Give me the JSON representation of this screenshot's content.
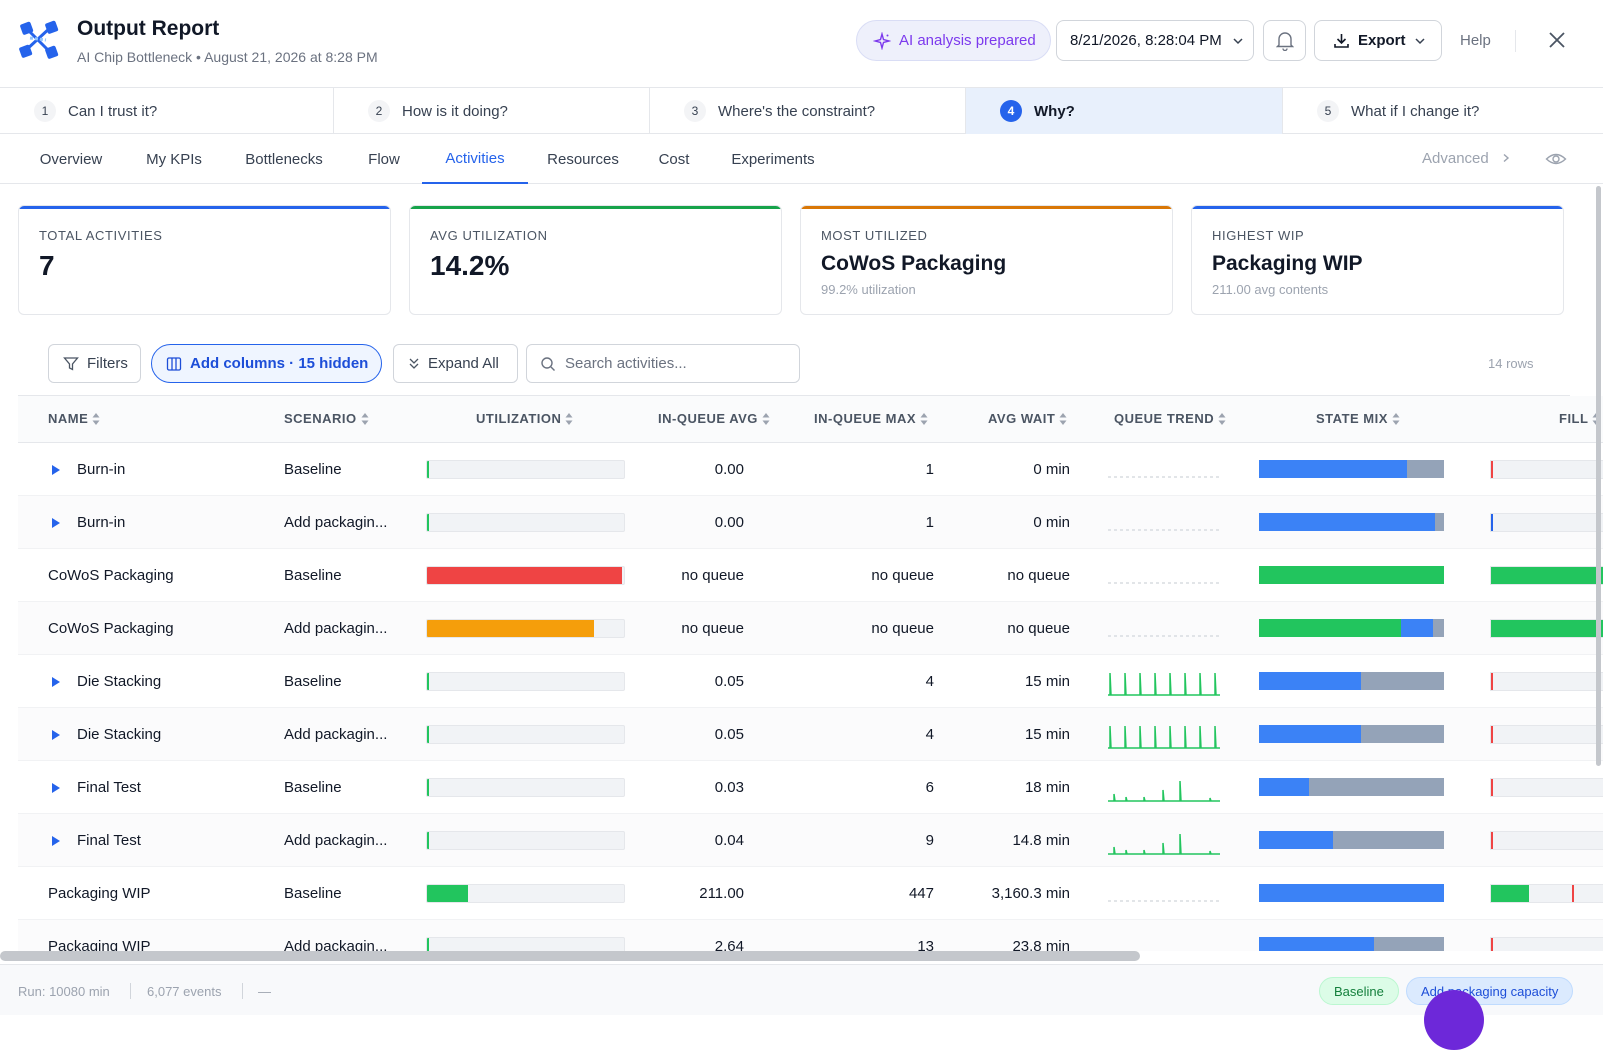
{
  "header": {
    "title": "Output Report",
    "subtitle": "AI Chip Bottleneck • August 21, 2026 at 8:28 PM",
    "ai_label": "AI analysis prepared",
    "date_value": "8/21/2026, 8:28:04 PM",
    "export_label": "Export",
    "help_label": "Help",
    "colors": {
      "accent": "#2563eb",
      "ai": "#7c3aed"
    }
  },
  "steps": [
    {
      "num": "1",
      "label": "Can I trust it?"
    },
    {
      "num": "2",
      "label": "How is it doing?"
    },
    {
      "num": "3",
      "label": "Where's the constraint?"
    },
    {
      "num": "4",
      "label": "Why?",
      "active": true
    },
    {
      "num": "5",
      "label": "What if I change it?"
    }
  ],
  "tabs": {
    "items": [
      "Overview",
      "My KPIs",
      "Bottlenecks",
      "Flow",
      "Activities",
      "Resources",
      "Cost",
      "Experiments"
    ],
    "active": "Activities",
    "advanced": "Advanced"
  },
  "kpis": [
    {
      "label": "TOTAL ACTIVITIES",
      "value": "7",
      "sub": "",
      "color": "#2563eb"
    },
    {
      "label": "AVG UTILIZATION",
      "value": "14.2%",
      "sub": "",
      "color": "#16a34a"
    },
    {
      "label": "MOST UTILIZED",
      "value": "CoWoS Packaging",
      "sub": "99.2% utilization",
      "color": "#d97706"
    },
    {
      "label": "HIGHEST WIP",
      "value": "Packaging WIP",
      "sub": "211.00 avg contents",
      "color": "#2563eb"
    }
  ],
  "toolbar": {
    "filters": "Filters",
    "add_columns": "Add columns · 15 hidden",
    "expand_all": "Expand All",
    "search_placeholder": "Search activities...",
    "rows": "14 rows"
  },
  "columns": [
    "NAME",
    "SCENARIO",
    "UTILIZATION",
    "IN-QUEUE AVG",
    "IN-QUEUE MAX",
    "AVG WAIT",
    "QUEUE TREND",
    "STATE MIX",
    "FILL"
  ],
  "rows": [
    {
      "name": "Burn-in",
      "expand": true,
      "scenario": "Baseline",
      "util": 0.005,
      "util_color": "#22c55e",
      "qavg": "0.00",
      "qmax": "1",
      "wait": "0 min",
      "trend": "flat",
      "state": [
        [
          "#3b82f6",
          0.8
        ],
        [
          "#94a3b8",
          0.2
        ]
      ],
      "fill": 0.01,
      "fill_color": "#ef4444",
      "fill_marker": null
    },
    {
      "name": "Burn-in",
      "expand": true,
      "scenario": "Add packagin...",
      "util": 0.005,
      "util_color": "#22c55e",
      "qavg": "0.00",
      "qmax": "1",
      "wait": "0 min",
      "trend": "flat",
      "state": [
        [
          "#3b82f6",
          0.95
        ],
        [
          "#94a3b8",
          0.05
        ]
      ],
      "fill": 0.01,
      "fill_color": "#2563eb",
      "fill_marker": null
    },
    {
      "name": "CoWoS Packaging",
      "expand": false,
      "scenario": "Baseline",
      "util": 0.992,
      "util_color": "#ef4444",
      "qavg": "no queue",
      "qmax": "no queue",
      "wait": "no queue",
      "trend": "flat",
      "state": [
        [
          "#22c55e",
          1.0
        ]
      ],
      "fill": 1.0,
      "fill_color": "#22c55e",
      "fill_marker": null
    },
    {
      "name": "CoWoS Packaging",
      "expand": false,
      "scenario": "Add packagin...",
      "util": 0.85,
      "util_color": "#f59e0b",
      "qavg": "no queue",
      "qmax": "no queue",
      "wait": "no queue",
      "trend": "flat",
      "state": [
        [
          "#22c55e",
          0.77
        ],
        [
          "#3b82f6",
          0.17
        ],
        [
          "#94a3b8",
          0.06
        ]
      ],
      "fill": 1.0,
      "fill_color": "#22c55e",
      "fill_marker": null
    },
    {
      "name": "Die Stacking",
      "expand": true,
      "scenario": "Baseline",
      "util": 0.005,
      "util_color": "#22c55e",
      "qavg": "0.05",
      "qmax": "4",
      "wait": "15 min",
      "trend": "spikes",
      "state": [
        [
          "#3b82f6",
          0.55
        ],
        [
          "#94a3b8",
          0.45
        ]
      ],
      "fill": 0.01,
      "fill_color": "#ef4444",
      "fill_marker": null
    },
    {
      "name": "Die Stacking",
      "expand": true,
      "scenario": "Add packagin...",
      "util": 0.005,
      "util_color": "#22c55e",
      "qavg": "0.05",
      "qmax": "4",
      "wait": "15 min",
      "trend": "spikes",
      "state": [
        [
          "#3b82f6",
          0.55
        ],
        [
          "#94a3b8",
          0.45
        ]
      ],
      "fill": 0.01,
      "fill_color": "#ef4444",
      "fill_marker": null
    },
    {
      "name": "Final Test",
      "expand": true,
      "scenario": "Baseline",
      "util": 0.002,
      "util_color": "#22c55e",
      "qavg": "0.03",
      "qmax": "6",
      "wait": "18 min",
      "trend": "sparse",
      "state": [
        [
          "#3b82f6",
          0.27
        ],
        [
          "#94a3b8",
          0.73
        ]
      ],
      "fill": 0.01,
      "fill_color": "#ef4444",
      "fill_marker": null
    },
    {
      "name": "Final Test",
      "expand": true,
      "scenario": "Add packagin...",
      "util": 0.005,
      "util_color": "#22c55e",
      "qavg": "0.04",
      "qmax": "9",
      "wait": "14.8 min",
      "trend": "sparse",
      "state": [
        [
          "#3b82f6",
          0.4
        ],
        [
          "#94a3b8",
          0.6
        ]
      ],
      "fill": 0.01,
      "fill_color": "#ef4444",
      "fill_marker": null
    },
    {
      "name": "Packaging WIP",
      "expand": false,
      "scenario": "Baseline",
      "util": 0.21,
      "util_color": "#22c55e",
      "qavg": "211.00",
      "qmax": "447",
      "wait": "3,160.3 min",
      "trend": "flat",
      "state": [
        [
          "#3b82f6",
          1.0
        ]
      ],
      "fill": 0.3,
      "fill_color": "#22c55e",
      "fill_marker": 0.63
    },
    {
      "name": "Packaging WIP",
      "expand": false,
      "scenario": "Add packagin...",
      "util": 0.005,
      "util_color": "#22c55e",
      "qavg": "2.64",
      "qmax": "13",
      "wait": "23.8 min",
      "trend": "flat",
      "state": [
        [
          "#3b82f6",
          0.62
        ],
        [
          "#94a3b8",
          0.38
        ]
      ],
      "fill": 0.01,
      "fill_color": "#ef4444",
      "fill_marker": null
    }
  ],
  "footer": {
    "run": "Run: 10080 min",
    "events": "6,077 events",
    "dash": "—",
    "baseline_chip": "Baseline",
    "scenario_chip": "Add packaging capacity"
  }
}
